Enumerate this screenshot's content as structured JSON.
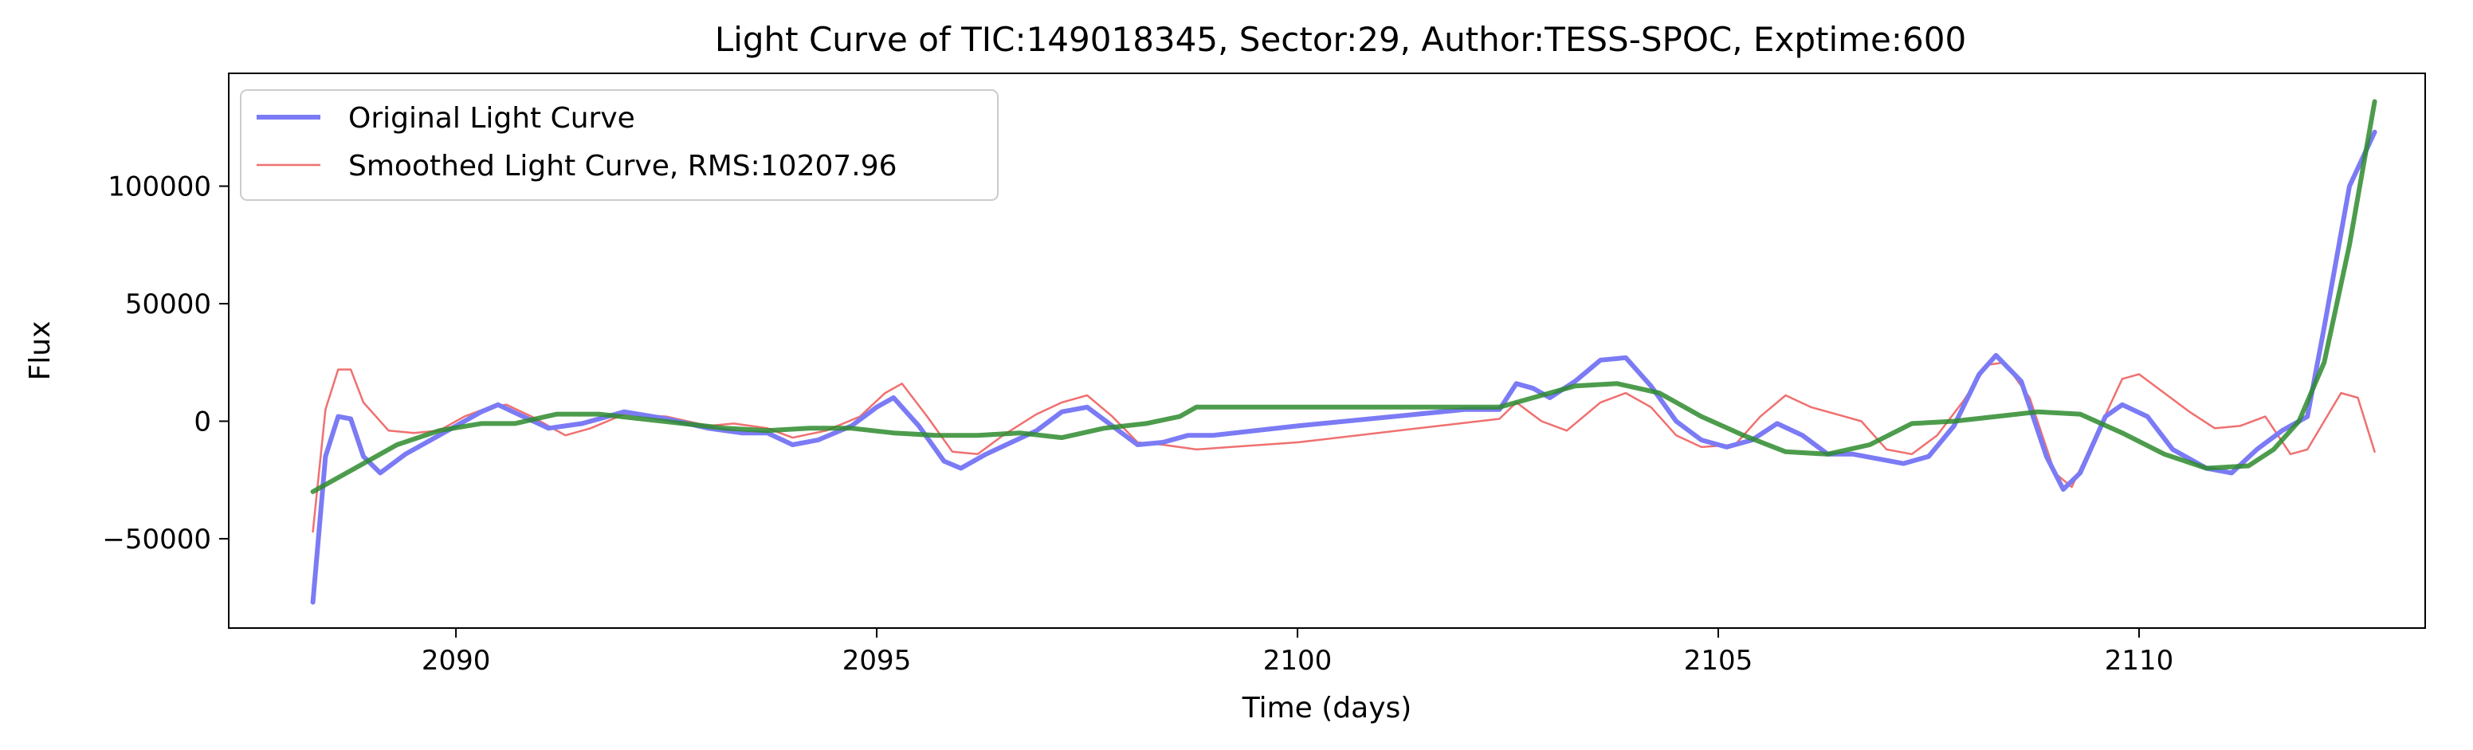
{
  "chart_data": {
    "type": "line",
    "title": "Light Curve of TIC:149018345, Sector:29, Author:TESS-SPOC, Exptime:600",
    "xlabel": "Time (days)",
    "ylabel": "Flux",
    "xlim": [
      2087.3,
      2113.4
    ],
    "ylim": [
      -88000,
      148000
    ],
    "xticks": [
      2090,
      2095,
      2100,
      2105,
      2110
    ],
    "yticks": [
      -50000,
      0,
      50000,
      100000
    ],
    "x_tick_labels": [
      "2090",
      "2095",
      "2100",
      "2105",
      "2110"
    ],
    "y_tick_labels": [
      "−50000",
      "0",
      "50000",
      "100000"
    ],
    "grid": false,
    "legend_position": "top-left",
    "series": [
      {
        "name": "Original Light Curve",
        "color": "#7b7bf5",
        "points": [
          [
            2088.3,
            -77000
          ],
          [
            2088.45,
            -15000
          ],
          [
            2088.6,
            2000
          ],
          [
            2088.75,
            1000
          ],
          [
            2088.9,
            -15000
          ],
          [
            2089.1,
            -22000
          ],
          [
            2089.4,
            -14000
          ],
          [
            2089.7,
            -8000
          ],
          [
            2090.0,
            -2000
          ],
          [
            2090.3,
            4000
          ],
          [
            2090.5,
            7000
          ],
          [
            2090.8,
            2000
          ],
          [
            2091.1,
            -3000
          ],
          [
            2091.5,
            -1000
          ],
          [
            2092.0,
            4000
          ],
          [
            2092.5,
            1000
          ],
          [
            2093.0,
            -3000
          ],
          [
            2093.4,
            -5000
          ],
          [
            2093.7,
            -5000
          ],
          [
            2094.0,
            -10000
          ],
          [
            2094.3,
            -8000
          ],
          [
            2094.7,
            -2000
          ],
          [
            2095.0,
            6000
          ],
          [
            2095.2,
            10000
          ],
          [
            2095.5,
            -2000
          ],
          [
            2095.8,
            -17000
          ],
          [
            2096.0,
            -20000
          ],
          [
            2096.3,
            -14000
          ],
          [
            2096.6,
            -9000
          ],
          [
            2096.9,
            -4000
          ],
          [
            2097.2,
            4000
          ],
          [
            2097.5,
            6000
          ],
          [
            2097.8,
            -2000
          ],
          [
            2098.1,
            -10000
          ],
          [
            2098.4,
            -9000
          ],
          [
            2098.7,
            -6000
          ],
          [
            2099.0,
            -6000
          ],
          [
            2100.0,
            -2000
          ],
          [
            2102.0,
            5000
          ],
          [
            2102.4,
            5000
          ],
          [
            2102.6,
            16000
          ],
          [
            2102.8,
            14000
          ],
          [
            2103.0,
            10000
          ],
          [
            2103.3,
            17000
          ],
          [
            2103.6,
            26000
          ],
          [
            2103.9,
            27000
          ],
          [
            2104.2,
            15000
          ],
          [
            2104.5,
            0
          ],
          [
            2104.8,
            -8000
          ],
          [
            2105.1,
            -11000
          ],
          [
            2105.4,
            -8000
          ],
          [
            2105.7,
            -1000
          ],
          [
            2106.0,
            -6000
          ],
          [
            2106.3,
            -14000
          ],
          [
            2106.6,
            -14000
          ],
          [
            2106.9,
            -16000
          ],
          [
            2107.2,
            -18000
          ],
          [
            2107.5,
            -15000
          ],
          [
            2107.8,
            -2000
          ],
          [
            2108.1,
            20000
          ],
          [
            2108.3,
            28000
          ],
          [
            2108.6,
            17000
          ],
          [
            2108.9,
            -15000
          ],
          [
            2109.1,
            -29000
          ],
          [
            2109.3,
            -22000
          ],
          [
            2109.6,
            2000
          ],
          [
            2109.8,
            7000
          ],
          [
            2110.1,
            2000
          ],
          [
            2110.4,
            -12000
          ],
          [
            2110.8,
            -20000
          ],
          [
            2111.1,
            -22000
          ],
          [
            2111.4,
            -12000
          ],
          [
            2111.7,
            -4000
          ],
          [
            2112.0,
            2000
          ],
          [
            2112.2,
            40000
          ],
          [
            2112.5,
            100000
          ],
          [
            2112.8,
            123000
          ]
        ]
      },
      {
        "name": "Smoothed Light Curve, RMS:10207.96",
        "color": "#f07070",
        "points": [
          [
            2088.3,
            -47000
          ],
          [
            2088.45,
            5000
          ],
          [
            2088.6,
            22000
          ],
          [
            2088.75,
            22000
          ],
          [
            2088.9,
            8000
          ],
          [
            2089.2,
            -4000
          ],
          [
            2089.5,
            -5000
          ],
          [
            2089.8,
            -4000
          ],
          [
            2090.1,
            2000
          ],
          [
            2090.4,
            6000
          ],
          [
            2090.6,
            7000
          ],
          [
            2090.9,
            2000
          ],
          [
            2091.3,
            -6000
          ],
          [
            2091.6,
            -3000
          ],
          [
            2092.0,
            3000
          ],
          [
            2092.5,
            2000
          ],
          [
            2093.0,
            -2000
          ],
          [
            2093.3,
            -1000
          ],
          [
            2093.7,
            -3000
          ],
          [
            2094.0,
            -7000
          ],
          [
            2094.4,
            -4000
          ],
          [
            2094.8,
            2000
          ],
          [
            2095.1,
            12000
          ],
          [
            2095.3,
            16000
          ],
          [
            2095.6,
            2000
          ],
          [
            2095.9,
            -13000
          ],
          [
            2096.2,
            -14000
          ],
          [
            2096.5,
            -6000
          ],
          [
            2096.9,
            3000
          ],
          [
            2097.2,
            8000
          ],
          [
            2097.5,
            11000
          ],
          [
            2097.8,
            2000
          ],
          [
            2098.1,
            -9000
          ],
          [
            2098.4,
            -10000
          ],
          [
            2098.8,
            -12000
          ],
          [
            2100.0,
            -9000
          ],
          [
            2102.4,
            1000
          ],
          [
            2102.6,
            8000
          ],
          [
            2102.9,
            0
          ],
          [
            2103.2,
            -4000
          ],
          [
            2103.6,
            8000
          ],
          [
            2103.9,
            12000
          ],
          [
            2104.2,
            6000
          ],
          [
            2104.5,
            -6000
          ],
          [
            2104.8,
            -11000
          ],
          [
            2105.2,
            -10000
          ],
          [
            2105.5,
            2000
          ],
          [
            2105.8,
            11000
          ],
          [
            2106.1,
            6000
          ],
          [
            2106.4,
            3000
          ],
          [
            2106.7,
            0
          ],
          [
            2107.0,
            -12000
          ],
          [
            2107.3,
            -14000
          ],
          [
            2107.6,
            -6000
          ],
          [
            2107.9,
            8000
          ],
          [
            2108.2,
            24000
          ],
          [
            2108.4,
            25000
          ],
          [
            2108.7,
            10000
          ],
          [
            2109.0,
            -22000
          ],
          [
            2109.2,
            -28000
          ],
          [
            2109.5,
            -5000
          ],
          [
            2109.8,
            18000
          ],
          [
            2110.0,
            20000
          ],
          [
            2110.3,
            12000
          ],
          [
            2110.6,
            4000
          ],
          [
            2110.9,
            -3000
          ],
          [
            2111.2,
            -2000
          ],
          [
            2111.5,
            2000
          ],
          [
            2111.8,
            -14000
          ],
          [
            2112.0,
            -12000
          ],
          [
            2112.2,
            0
          ],
          [
            2112.4,
            12000
          ],
          [
            2112.6,
            10000
          ],
          [
            2112.8,
            -13000
          ]
        ]
      },
      {
        "color": "#2e8b2e",
        "points": [
          [
            2088.3,
            -30000
          ],
          [
            2088.8,
            -20000
          ],
          [
            2089.3,
            -10000
          ],
          [
            2089.8,
            -4000
          ],
          [
            2090.3,
            -1000
          ],
          [
            2090.7,
            -1000
          ],
          [
            2091.2,
            3000
          ],
          [
            2091.7,
            3000
          ],
          [
            2092.2,
            1000
          ],
          [
            2092.7,
            -1000
          ],
          [
            2093.2,
            -3000
          ],
          [
            2093.7,
            -4000
          ],
          [
            2094.2,
            -3000
          ],
          [
            2094.7,
            -3000
          ],
          [
            2095.2,
            -5000
          ],
          [
            2095.7,
            -6000
          ],
          [
            2096.2,
            -6000
          ],
          [
            2096.7,
            -5000
          ],
          [
            2097.2,
            -7000
          ],
          [
            2097.7,
            -3000
          ],
          [
            2098.2,
            -1000
          ],
          [
            2098.6,
            2000
          ],
          [
            2098.8,
            6000
          ],
          [
            2100.0,
            6000
          ],
          [
            2102.4,
            6000
          ],
          [
            2102.8,
            10000
          ],
          [
            2103.3,
            15000
          ],
          [
            2103.8,
            16000
          ],
          [
            2104.3,
            12000
          ],
          [
            2104.8,
            2000
          ],
          [
            2105.3,
            -6000
          ],
          [
            2105.8,
            -13000
          ],
          [
            2106.3,
            -14000
          ],
          [
            2106.8,
            -10000
          ],
          [
            2107.3,
            -1000
          ],
          [
            2107.8,
            0
          ],
          [
            2108.3,
            2000
          ],
          [
            2108.8,
            4000
          ],
          [
            2109.3,
            3000
          ],
          [
            2109.8,
            -5000
          ],
          [
            2110.3,
            -14000
          ],
          [
            2110.8,
            -20000
          ],
          [
            2111.3,
            -19000
          ],
          [
            2111.6,
            -12000
          ],
          [
            2111.9,
            0
          ],
          [
            2112.2,
            25000
          ],
          [
            2112.5,
            75000
          ],
          [
            2112.8,
            136000
          ]
        ]
      }
    ]
  }
}
